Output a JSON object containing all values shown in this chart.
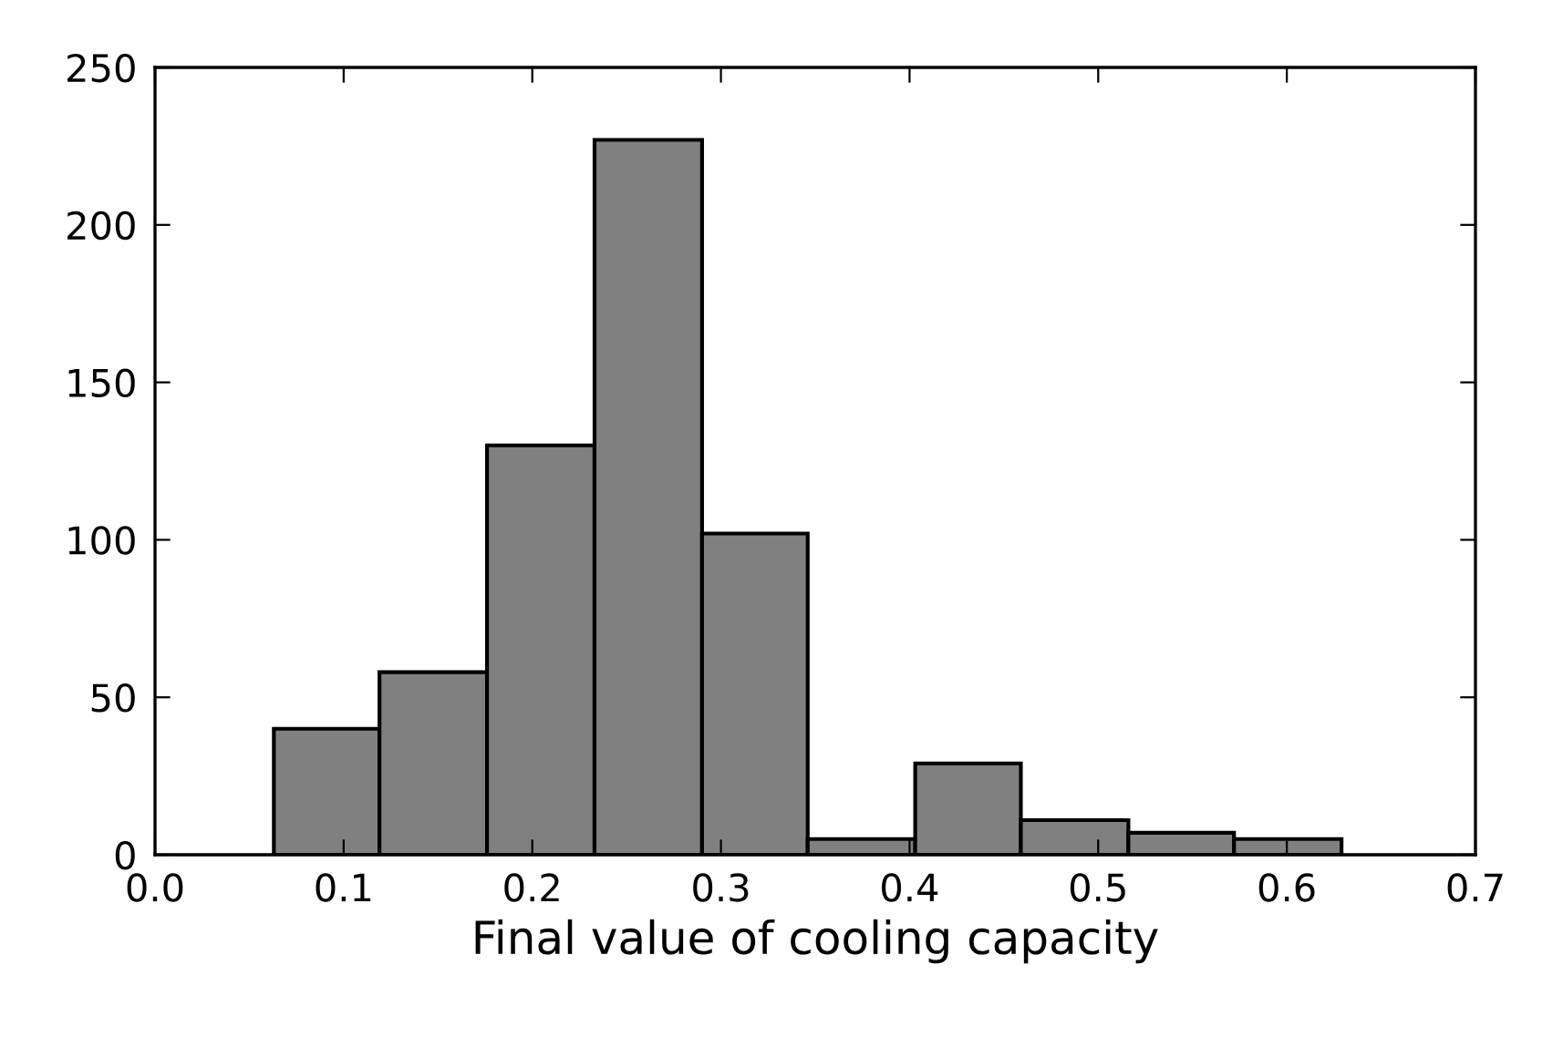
{
  "chart_data": {
    "type": "histogram",
    "xlabel": "Final value of cooling capacity",
    "bins": [
      0.063,
      0.119,
      0.176,
      0.233,
      0.29,
      0.346,
      0.403,
      0.459,
      0.516,
      0.572,
      0.629
    ],
    "values": [
      40,
      58,
      130,
      227,
      102,
      5,
      29,
      11,
      7,
      5
    ],
    "color": "#808080",
    "xlim": [
      0.0,
      0.7
    ],
    "xticks": [
      {
        "value": 0.0,
        "label": "0.0"
      },
      0.1,
      0.2,
      0.3,
      0.4,
      0.5,
      0.6,
      0.7
    ],
    "ylim": [
      0,
      250
    ],
    "yticks": [
      0,
      50,
      100,
      150,
      200,
      250
    ],
    "grid": false
  }
}
